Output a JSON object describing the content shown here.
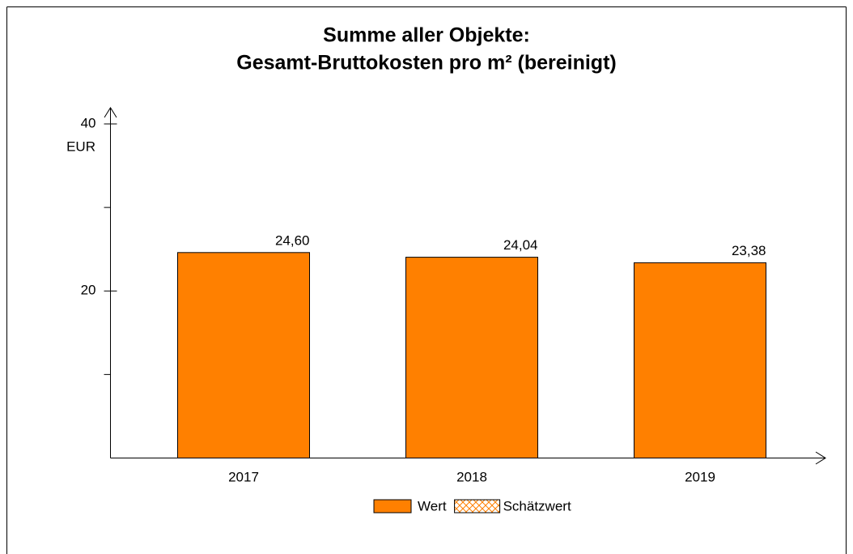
{
  "chart_data": {
    "type": "bar",
    "title": [
      "Summe aller Objekte:",
      "Gesamt-Bruttokosten pro m² (bereinigt)"
    ],
    "y_label": "EUR",
    "categories": [
      "2017",
      "2018",
      "2019"
    ],
    "series": [
      {
        "name": "Wert",
        "color": "#ff8000",
        "values": [
          24.6,
          24.04,
          23.38
        ],
        "value_labels": [
          "24,60",
          "24,04",
          "23,38"
        ]
      },
      {
        "name": "Schätzwert",
        "color": "#ff8000",
        "pattern": "crosshatch",
        "values": [
          null,
          null,
          null
        ]
      }
    ],
    "ylim": [
      0,
      40
    ],
    "yticks": [
      20,
      40
    ],
    "minor_yticks": [
      10,
      30
    ],
    "grid": false,
    "legend": "bottom"
  }
}
